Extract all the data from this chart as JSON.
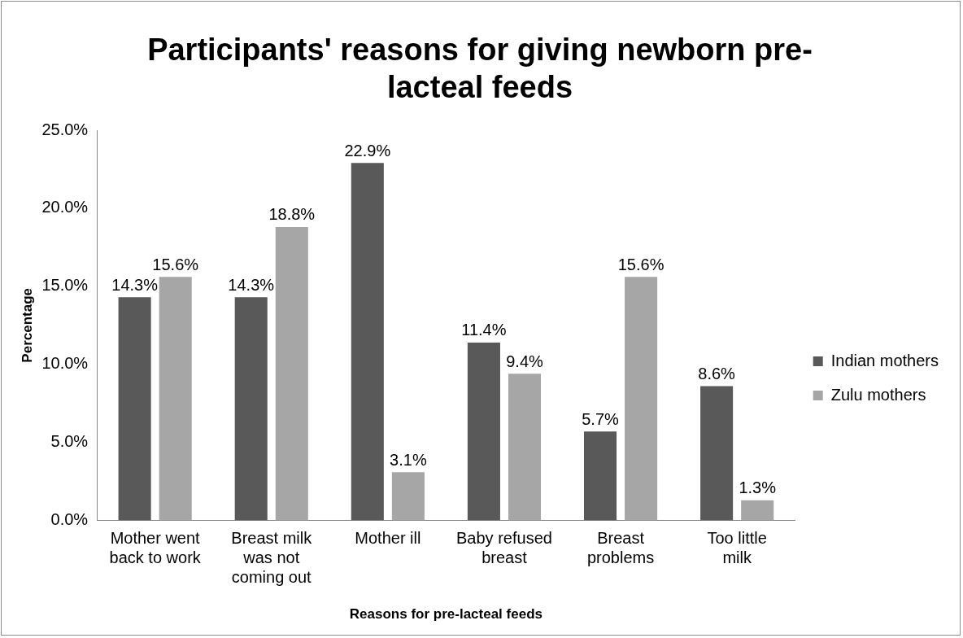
{
  "chart_data": {
    "type": "bar",
    "title": "Participants' reasons for giving newborn pre-lacteal feeds",
    "xlabel": "Reasons for pre-lacteal feeds",
    "ylabel": "Percentage",
    "categories": [
      "Mother went back to work",
      "Breast milk was not coming out",
      "Mother ill",
      "Baby refused breast",
      "Breast problems",
      "Too little milk"
    ],
    "series": [
      {
        "name": "Indian mothers",
        "color": "#595959",
        "values": [
          14.3,
          14.3,
          22.9,
          11.4,
          5.7,
          8.6
        ],
        "value_labels": [
          "14.3%",
          "14.3%",
          "22.9%",
          "11.4%",
          "5.7%",
          "8.6%"
        ]
      },
      {
        "name": "Zulu mothers",
        "color": "#a6a6a6",
        "values": [
          15.6,
          18.8,
          3.1,
          9.4,
          15.6,
          1.3
        ],
        "value_labels": [
          "15.6%",
          "18.8%",
          "3.1%",
          "9.4%",
          "15.6%",
          "1.3%"
        ]
      }
    ],
    "ylim": [
      0,
      25
    ],
    "yticks": [
      {
        "value": 0,
        "label": "0.0%"
      },
      {
        "value": 5,
        "label": "5.0%"
      },
      {
        "value": 10,
        "label": "10.0%"
      },
      {
        "value": 15,
        "label": "15.0%"
      },
      {
        "value": 20,
        "label": "20.0%"
      },
      {
        "value": 25,
        "label": "25.0%"
      }
    ],
    "legend": "right",
    "grid": false
  }
}
